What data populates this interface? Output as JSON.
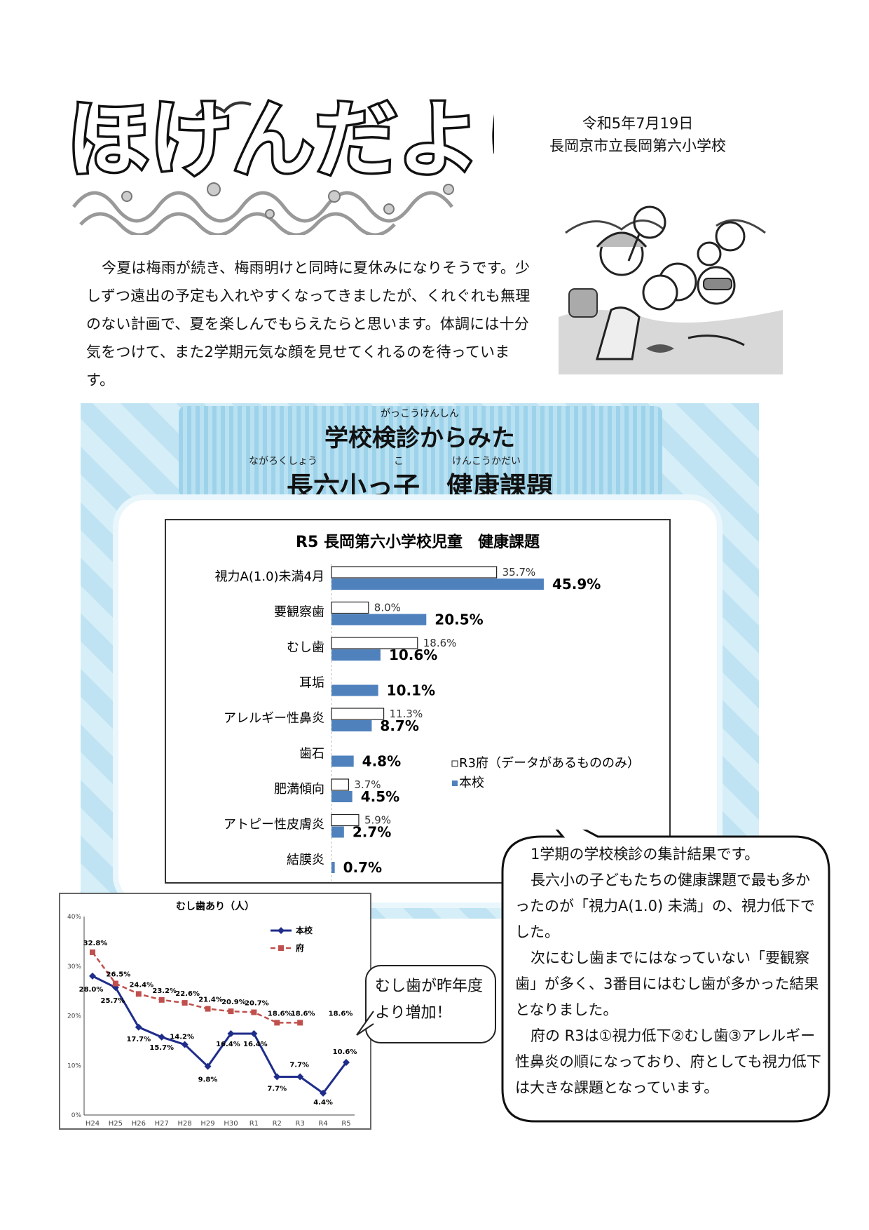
{
  "header": {
    "logo_text": "ほけんだより",
    "date": "令和5年7月19日",
    "school": "長岡京市立長岡第六小学校"
  },
  "intro": {
    "text": "今夏は梅雨が続き、梅雨明けと同時に夏休みになりそうです。少しずつ遠出の予定も入れやすくなってきましたが、くれぐれも無理のない計画で、夏を楽しんでもらえたらと思います。体調には十分気をつけて、また2学期元気な顔を見せてくれるのを待っています。"
  },
  "banner": {
    "line1_ruby": "がっこうけんしん",
    "line1": "学校検診からみた",
    "line2_ruby1": "ながろくしょう",
    "line2_ruby2": "こ",
    "line2_ruby3": "けんこうかだい",
    "line2": "長六小っ子　健康課題"
  },
  "chart_data": [
    {
      "type": "bar",
      "title": "R5 長岡第六小学校児童　健康課題",
      "categories": [
        "視力A(1.0)未満4月",
        "要観察歯",
        "むし歯",
        "耳垢",
        "アレルギー性鼻炎",
        "歯石",
        "肥満傾向",
        "アトピー性皮膚炎",
        "結膜炎"
      ],
      "series": [
        {
          "name": "R3府（データがあるもののみ）",
          "values": [
            35.7,
            8.0,
            18.6,
            null,
            11.3,
            null,
            3.7,
            5.9,
            null
          ],
          "labels": [
            "35.7%",
            "8.0%",
            "18.6%",
            "",
            "11.3%",
            "",
            "3.7%",
            "5.9%",
            ""
          ],
          "color": "#ffffff"
        },
        {
          "name": "本校",
          "values": [
            45.9,
            20.5,
            10.6,
            10.1,
            8.7,
            4.8,
            4.5,
            2.7,
            0.7
          ],
          "labels": [
            "45.9%",
            "20.5%",
            "10.6%",
            "10.1%",
            "8.7%",
            "4.8%",
            "4.5%",
            "2.7%",
            "0.7%"
          ],
          "color": "#4f81bd"
        }
      ],
      "legend": "right"
    },
    {
      "type": "line",
      "title": "むし歯あり（人）",
      "x": [
        "H24",
        "H25",
        "H26",
        "H27",
        "H28",
        "H29",
        "H30",
        "R1",
        "R2",
        "R3",
        "R4",
        "R5"
      ],
      "ylim": [
        0,
        40
      ],
      "yticks": [
        "0%",
        "10%",
        "20%",
        "30%",
        "40%"
      ],
      "series": [
        {
          "name": "本校",
          "values": [
            28.0,
            25.7,
            17.7,
            15.7,
            14.2,
            9.8,
            16.4,
            16.4,
            7.7,
            7.7,
            4.4,
            10.6
          ],
          "labels": [
            "28.0%",
            "25.7%",
            "17.7%",
            "15.7%",
            "14.2%",
            "9.8%",
            "16.4%",
            "16.4%",
            "7.7%",
            "7.7%",
            "4.4%",
            "10.6%"
          ],
          "color": "#1f2d8a"
        },
        {
          "name": "府",
          "values": [
            32.8,
            26.5,
            24.4,
            23.2,
            22.6,
            21.4,
            20.9,
            20.7,
            18.6,
            18.6,
            null,
            null
          ],
          "labels": [
            "32.8%",
            "26.5%",
            "24.4%",
            "23.2%",
            "22.6%",
            "21.4%",
            "20.9%",
            "20.7%",
            "18.6%",
            "18.6%",
            "",
            ""
          ],
          "color": "#c0504d"
        }
      ],
      "legend": "top-right",
      "grid": false
    }
  ],
  "note": {
    "text": "むし歯が昨年度より増加！"
  },
  "speech": {
    "p1": "1学期の学校検診の集計結果です。",
    "p2": "長六小の子どもたちの健康課題で最も多かったのが「視力A(1.0) 未満」の、視力低下でした。",
    "p3": "次にむし歯までにはなっていない「要観察歯」が多く、3番目にはむし歯が多かった結果となりました。",
    "p4": "府の R3は①視力低下②むし歯③アレルギー性鼻炎の順になっており、府としても視力低下は大きな課題となっています。"
  }
}
